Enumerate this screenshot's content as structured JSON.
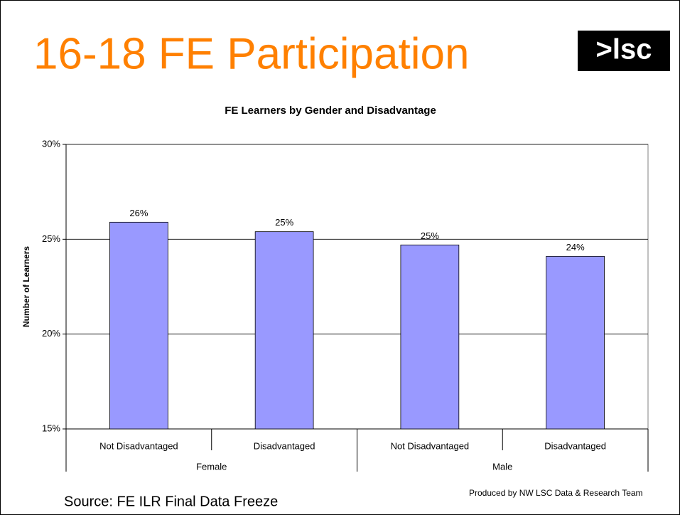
{
  "slide": {
    "title": "16-18 FE Participation",
    "logo": ">lsc",
    "source": "Source: FE ILR Final Data Freeze",
    "credit": "Produced by NW LSC Data & Research Team"
  },
  "chart_data": {
    "type": "bar",
    "title": "FE Learners by Gender and Disadvantage",
    "y_label": "Number of Learners",
    "categories": [
      "Not Disadvantaged",
      "Disadvantaged",
      "Not Disadvantaged",
      "Disadvantaged"
    ],
    "groups": [
      "Female",
      "Male"
    ],
    "values": [
      25.9,
      25.4,
      24.7,
      24.1
    ],
    "value_labels": [
      "26%",
      "25%",
      "25%",
      "24%"
    ],
    "color": "#9999ff",
    "ylim": [
      15,
      30
    ],
    "yticks": [
      {
        "value": 15,
        "label": "15%"
      },
      {
        "value": 20,
        "label": "20%"
      },
      {
        "value": 25,
        "label": "25%"
      },
      {
        "value": 30,
        "label": "30%"
      }
    ],
    "grid": true
  }
}
